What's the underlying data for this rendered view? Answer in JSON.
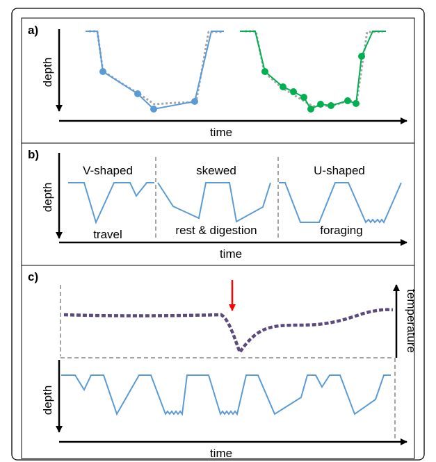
{
  "panels": [
    {
      "label": "a)",
      "x_axis_label": "time",
      "y_axis_label": "depth"
    },
    {
      "label": "b)",
      "x_axis_label": "time",
      "y_axis_label": "depth",
      "dive_shapes": [
        "V-shaped",
        "skewed",
        "U-shaped"
      ],
      "behaviours": [
        "travel",
        "rest & digestion",
        "foraging"
      ]
    },
    {
      "label": "c)",
      "x_axis_label": "time",
      "y_axis_label": "depth",
      "right_axis_label": "temperature"
    }
  ],
  "colors": {
    "dive_profile": "#5b9bd5",
    "dive_profile_b_points": "#00b050",
    "approximation": "#a6a6a6",
    "temperature": "#5c4a7d",
    "event_arrow": "#ff0000",
    "divider": "#a6a6a6"
  }
}
